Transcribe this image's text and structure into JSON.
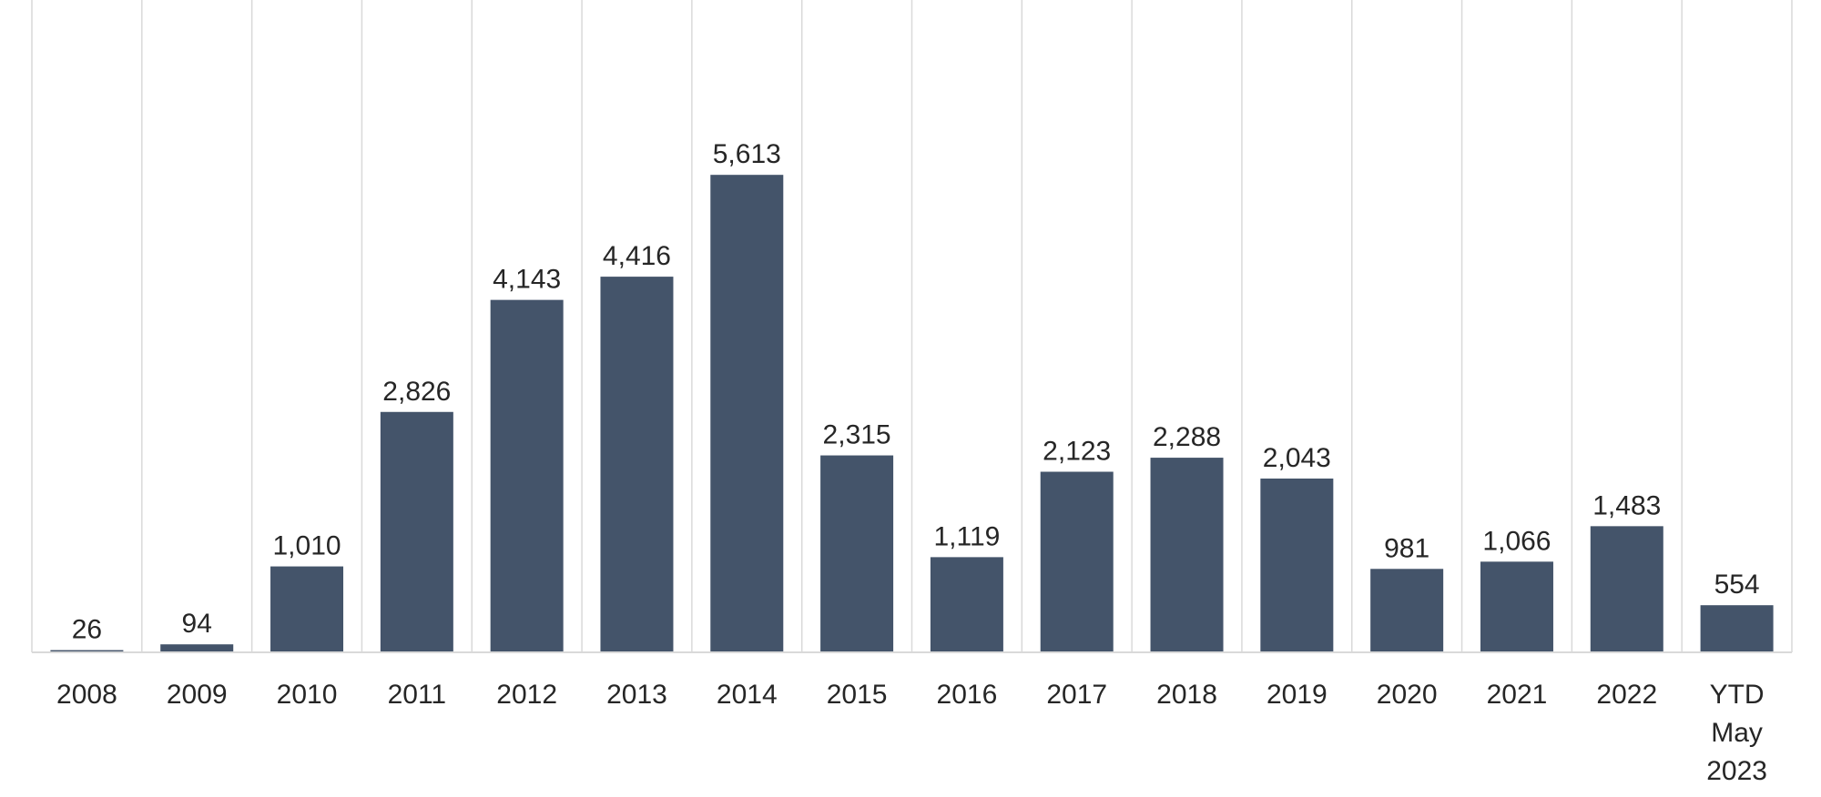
{
  "chart_data": {
    "type": "bar",
    "categories": [
      "2008",
      "2009",
      "2010",
      "2011",
      "2012",
      "2013",
      "2014",
      "2015",
      "2016",
      "2017",
      "2018",
      "2019",
      "2020",
      "2021",
      "2022",
      "YTD May 2023"
    ],
    "category_lines": [
      [
        "2008"
      ],
      [
        "2009"
      ],
      [
        "2010"
      ],
      [
        "2011"
      ],
      [
        "2012"
      ],
      [
        "2013"
      ],
      [
        "2014"
      ],
      [
        "2015"
      ],
      [
        "2016"
      ],
      [
        "2017"
      ],
      [
        "2018"
      ],
      [
        "2019"
      ],
      [
        "2020"
      ],
      [
        "2021"
      ],
      [
        "2022"
      ],
      [
        "YTD",
        "May",
        "2023"
      ]
    ],
    "values": [
      26,
      94,
      1010,
      2826,
      4143,
      4416,
      5613,
      2315,
      1119,
      2123,
      2288,
      2043,
      981,
      1066,
      1483,
      554
    ],
    "data_labels": [
      "26",
      "94",
      "1,010",
      "2,826",
      "4,143",
      "4,416",
      "5,613",
      "2,315",
      "1,119",
      "2,123",
      "2,288",
      "2,043",
      "981",
      "1,066",
      "1,483",
      "554"
    ],
    "title": "",
    "xlabel": "",
    "ylabel": "",
    "ylim": [
      0,
      6000
    ],
    "grid": "vertical",
    "legend": "none",
    "bar_color": "#44546a"
  }
}
